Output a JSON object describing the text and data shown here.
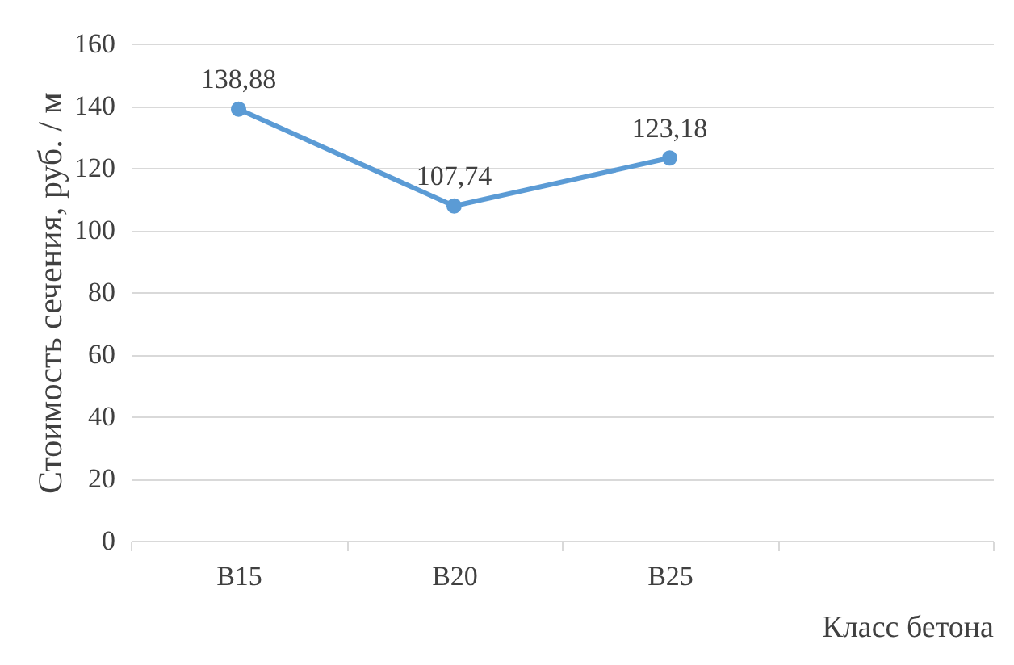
{
  "chart_data": {
    "type": "line",
    "xlabel": "Класс бетона",
    "ylabel": "Стоимость сечения, руб. / м",
    "categories": [
      "B15",
      "B20",
      "B25",
      null
    ],
    "series": [
      {
        "color": "#5b9bd5",
        "values": [
          138.88,
          107.74,
          123.18,
          null
        ],
        "value_labels": [
          "138,88",
          "107,74",
          "123,18",
          null
        ]
      }
    ],
    "ylim": [
      0,
      160
    ],
    "yticks": [
      0,
      20,
      40,
      60,
      80,
      100,
      120,
      140,
      160
    ],
    "grid": "y",
    "marker": "circle",
    "line_style": "solid"
  }
}
